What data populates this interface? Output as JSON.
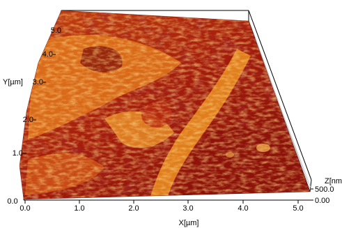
{
  "axes": {
    "x": {
      "title": "X[µm]",
      "ticks": [
        "0.0",
        "1.0",
        "2.0",
        "3.0",
        "4.0",
        "5.0"
      ]
    },
    "y": {
      "title": "Y[µm]",
      "ticks": [
        "0.0",
        "1.0",
        "2.0",
        "3.0",
        "4.0",
        "5.0"
      ]
    },
    "z": {
      "title": "Z[nm]",
      "ticks": [
        "0.00",
        "500.0"
      ]
    }
  },
  "colors": {
    "surface_dark": "#7a0c08",
    "surface_mid": "#b3260f",
    "surface_light": "#e07a1e",
    "surface_highlight": "#f6b04a",
    "frame": "#000000",
    "grid": "#c8c8c8"
  }
}
